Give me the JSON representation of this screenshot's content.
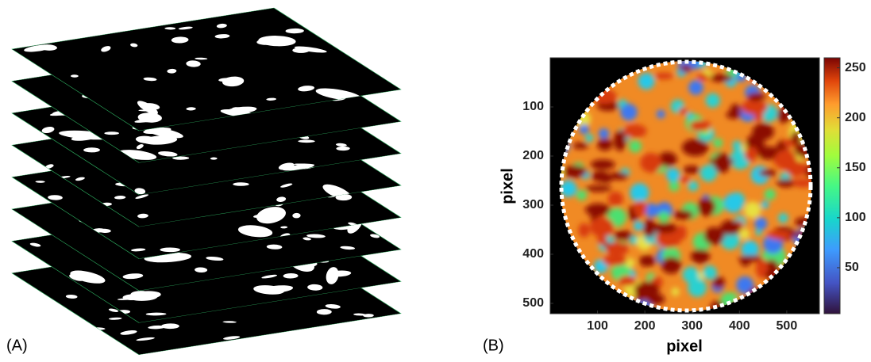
{
  "panels": {
    "a_label": "(A)",
    "b_label": "(B)"
  },
  "chart_data": {
    "type": "heatmap",
    "xlabel": "pixel",
    "ylabel": "pixel",
    "xlim": [
      0,
      569
    ],
    "ylim": [
      0,
      521
    ],
    "y_reversed": true,
    "xticks": [
      100,
      200,
      300,
      400,
      500
    ],
    "yticks": [
      100,
      200,
      300,
      400,
      500
    ],
    "clim": [
      4,
      260
    ],
    "cticks": [
      50,
      100,
      150,
      200,
      250
    ]
  }
}
